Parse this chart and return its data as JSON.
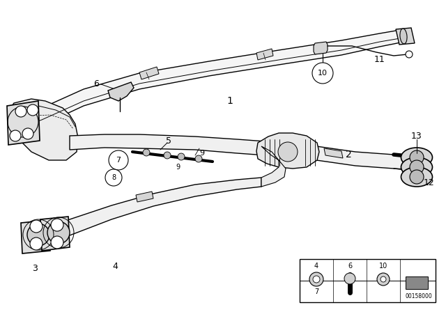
{
  "bg_color": "#ffffff",
  "line_color": "#000000",
  "fig_width": 6.4,
  "fig_height": 4.48,
  "dpi": 100,
  "diagram_id": "00158000"
}
